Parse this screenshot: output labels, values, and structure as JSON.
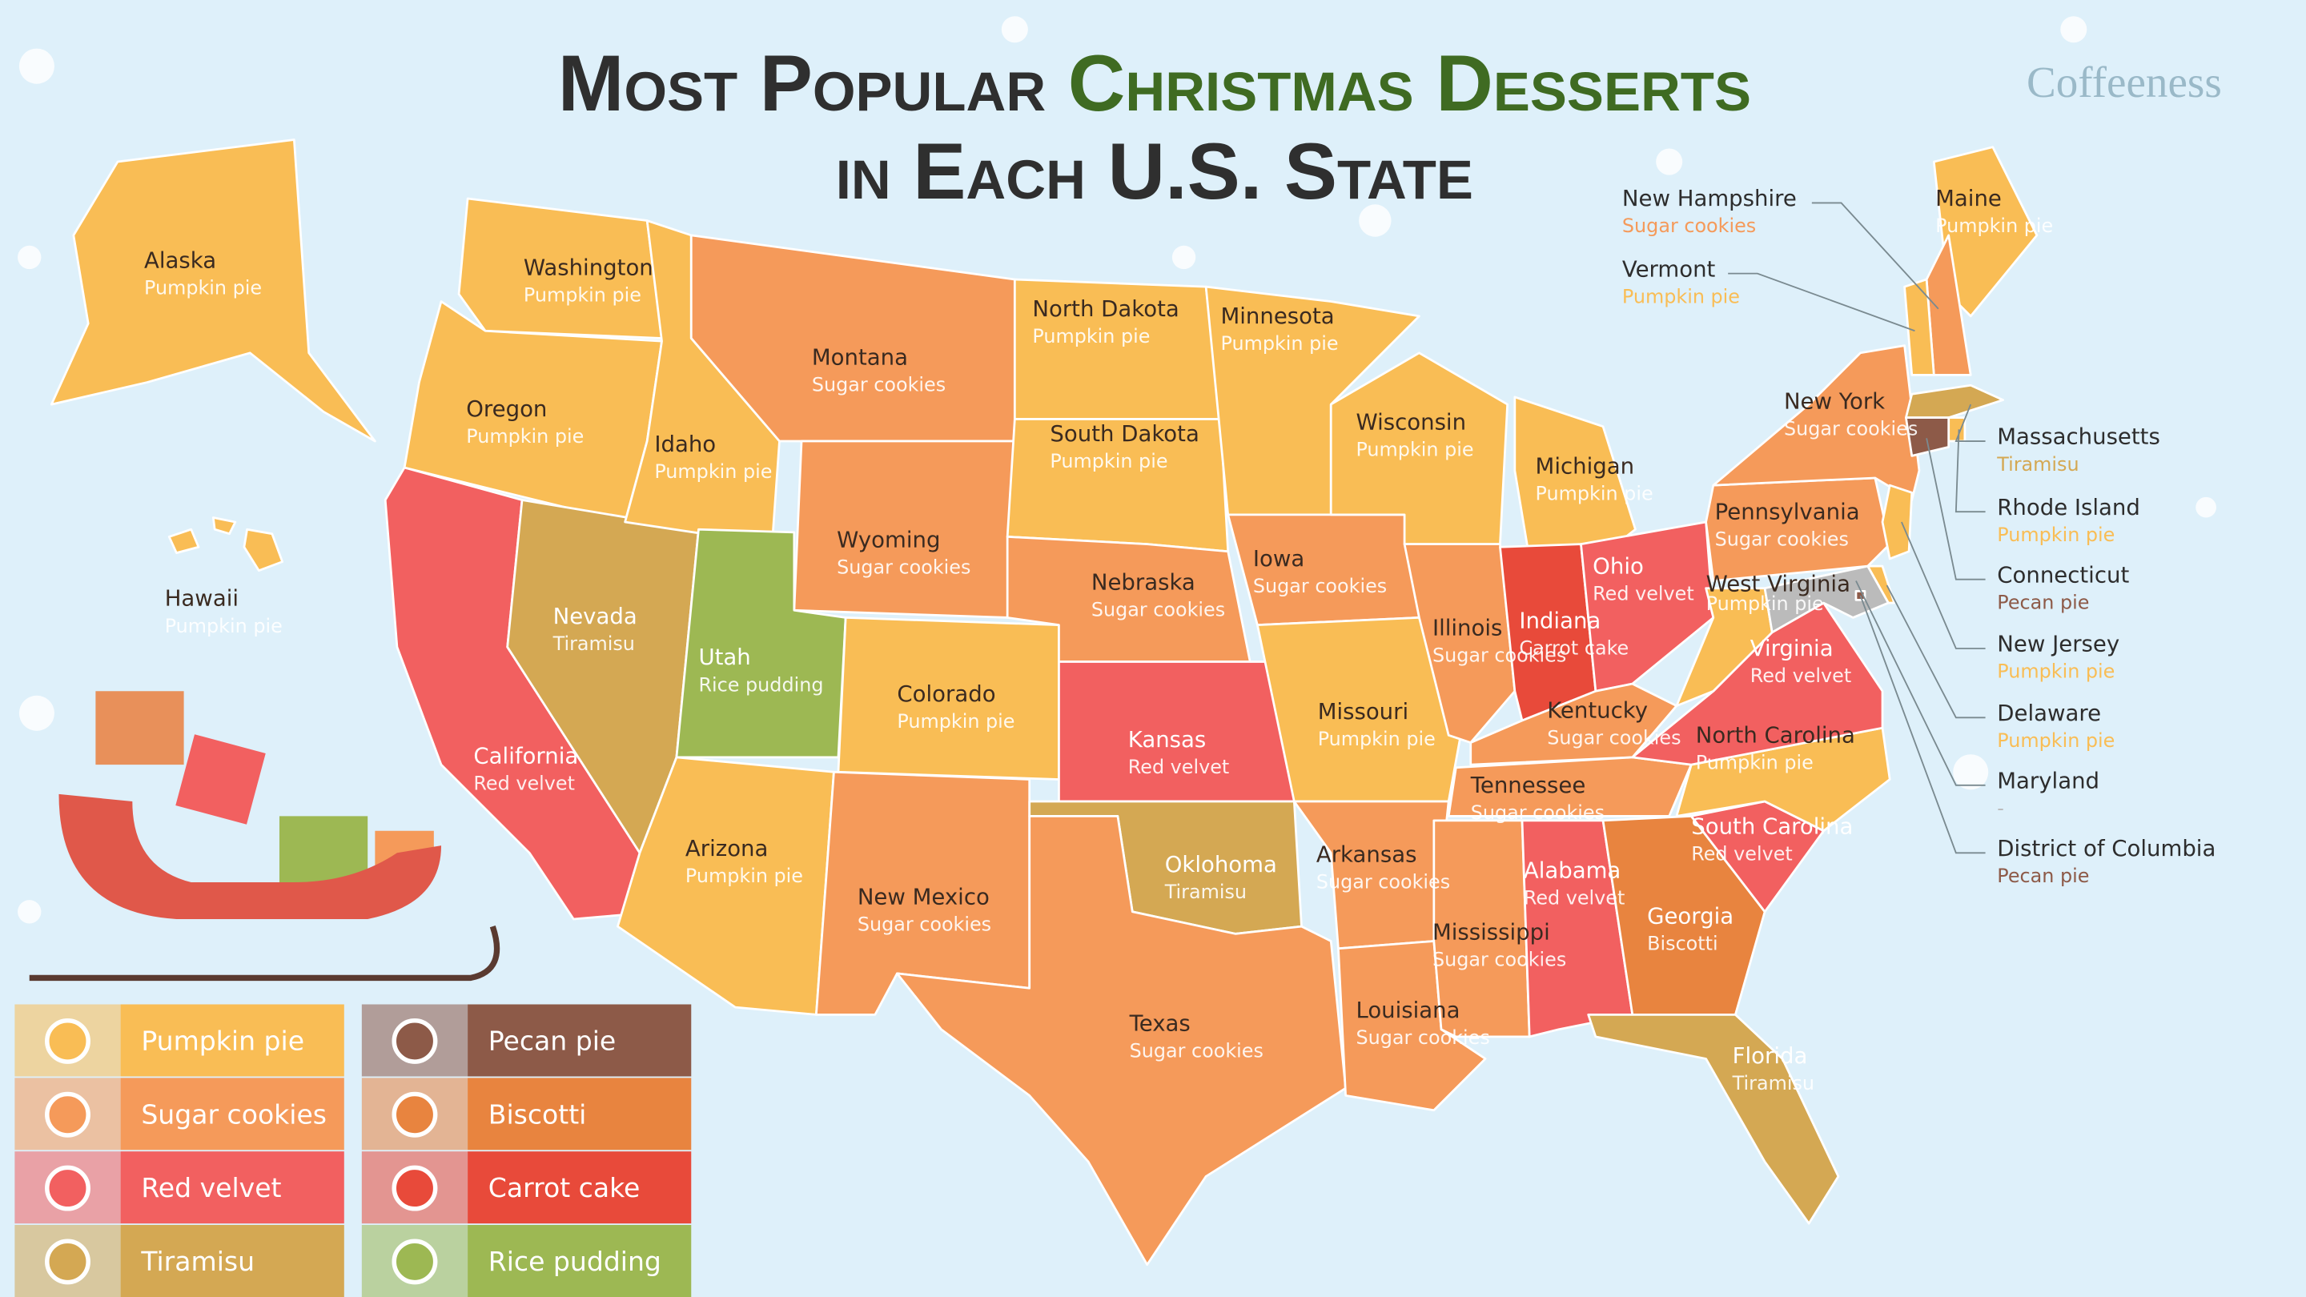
{
  "header": {
    "title_start": "Most Popular",
    "title_highlight": "Christmas Desserts",
    "title_end": "in Each U.S. State",
    "brand": "Coffeeness"
  },
  "legend": [
    {
      "label": "Pumpkin pie",
      "color": "#f9bd55"
    },
    {
      "label": "Sugar cookies",
      "color": "#f59a5a"
    },
    {
      "label": "Red velvet",
      "color": "#f26060"
    },
    {
      "label": "Tiramisu",
      "color": "#d4a853"
    },
    {
      "label": "Pecan pie",
      "color": "#8d5a48"
    },
    {
      "label": "Biscotti",
      "color": "#e8843f"
    },
    {
      "label": "Carrot cake",
      "color": "#e84a3a"
    },
    {
      "label": "Rice pudding",
      "color": "#9db853"
    }
  ],
  "states": [
    {
      "name": "Alaska",
      "dessert": "Pumpkin pie"
    },
    {
      "name": "Hawaii",
      "dessert": "Pumpkin pie"
    },
    {
      "name": "Washington",
      "dessert": "Pumpkin pie"
    },
    {
      "name": "Oregon",
      "dessert": "Pumpkin pie"
    },
    {
      "name": "California",
      "dessert": "Red velvet"
    },
    {
      "name": "Nevada",
      "dessert": "Tiramisu"
    },
    {
      "name": "Idaho",
      "dessert": "Pumpkin pie"
    },
    {
      "name": "Montana",
      "dessert": "Sugar cookies"
    },
    {
      "name": "Wyoming",
      "dessert": "Sugar cookies"
    },
    {
      "name": "Utah",
      "dessert": "Rice pudding"
    },
    {
      "name": "Colorado",
      "dessert": "Pumpkin pie"
    },
    {
      "name": "Arizona",
      "dessert": "Pumpkin pie"
    },
    {
      "name": "New Mexico",
      "dessert": "Sugar cookies"
    },
    {
      "name": "North Dakota",
      "dessert": "Pumpkin pie"
    },
    {
      "name": "South Dakota",
      "dessert": "Pumpkin pie"
    },
    {
      "name": "Nebraska",
      "dessert": "Sugar cookies"
    },
    {
      "name": "Kansas",
      "dessert": "Red velvet"
    },
    {
      "name": "Oklohoma",
      "dessert": "Tiramisu"
    },
    {
      "name": "Texas",
      "dessert": "Sugar cookies"
    },
    {
      "name": "Minnesota",
      "dessert": "Pumpkin pie"
    },
    {
      "name": "Iowa",
      "dessert": "Sugar cookies"
    },
    {
      "name": "Missouri",
      "dessert": "Pumpkin pie"
    },
    {
      "name": "Arkansas",
      "dessert": "Sugar cookies"
    },
    {
      "name": "Louisiana",
      "dessert": "Sugar cookies"
    },
    {
      "name": "Wisconsin",
      "dessert": "Pumpkin pie"
    },
    {
      "name": "Illinois",
      "dessert": "Sugar cookies"
    },
    {
      "name": "Michigan",
      "dessert": "Pumpkin pie"
    },
    {
      "name": "Indiana",
      "dessert": "Carrot cake"
    },
    {
      "name": "Ohio",
      "dessert": "Red velvet"
    },
    {
      "name": "Kentucky",
      "dessert": "Sugar cookies"
    },
    {
      "name": "Tennessee",
      "dessert": "Sugar cookies"
    },
    {
      "name": "Mississippi",
      "dessert": "Sugar cookies"
    },
    {
      "name": "Alabama",
      "dessert": "Red velvet"
    },
    {
      "name": "Georgia",
      "dessert": "Biscotti"
    },
    {
      "name": "Florida",
      "dessert": "Tiramisu"
    },
    {
      "name": "South Carolina",
      "dessert": "Red velvet"
    },
    {
      "name": "North Carolina",
      "dessert": "Pumpkin pie"
    },
    {
      "name": "Virginia",
      "dessert": "Red velvet"
    },
    {
      "name": "West Virginia",
      "dessert": "Pumpkin pie"
    },
    {
      "name": "Pennsylvania",
      "dessert": "Sugar cookies"
    },
    {
      "name": "New York",
      "dessert": "Sugar cookies"
    },
    {
      "name": "Maine",
      "dessert": "Pumpkin pie"
    },
    {
      "name": "New Hampshire",
      "dessert": "Sugar cookies"
    },
    {
      "name": "Vermont",
      "dessert": "Pumpkin pie"
    },
    {
      "name": "Massachusetts",
      "dessert": "Tiramisu"
    },
    {
      "name": "Rhode Island",
      "dessert": "Pumpkin pie"
    },
    {
      "name": "Connecticut",
      "dessert": "Pecan pie"
    },
    {
      "name": "New Jersey",
      "dessert": "Pumpkin pie"
    },
    {
      "name": "Delaware",
      "dessert": "Pumpkin pie"
    },
    {
      "name": "Maryland",
      "dessert": "-"
    },
    {
      "name": "District of Columbia",
      "dessert": "Pecan pie"
    }
  ]
}
